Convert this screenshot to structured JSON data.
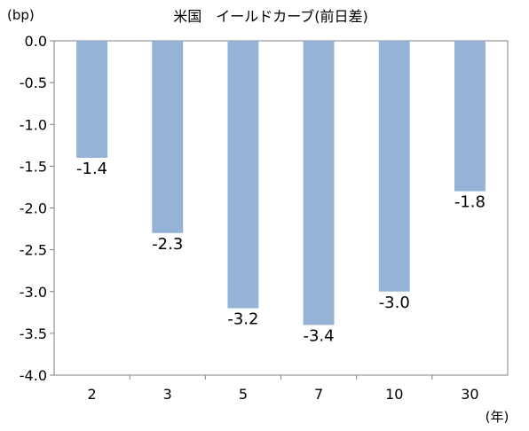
{
  "chart_data": {
    "type": "bar",
    "title": "米国　イールドカーブ(前日差)",
    "y_unit": "(bp)",
    "x_unit": "(年)",
    "categories": [
      "2",
      "3",
      "5",
      "7",
      "10",
      "30"
    ],
    "values": [
      -1.4,
      -2.3,
      -3.2,
      -3.4,
      -3.0,
      -1.8
    ],
    "data_labels": [
      "-1.4",
      "-2.3",
      "-3.2",
      "-3.4",
      "-3.0",
      "-1.8"
    ],
    "ylim": [
      -4.0,
      0.0
    ],
    "yticks": [
      "0.0",
      "-0.5",
      "-1.0",
      "-1.5",
      "-2.0",
      "-2.5",
      "-3.0",
      "-3.5",
      "-4.0"
    ],
    "bar_color": "#95b3d7",
    "grid": false,
    "legend": "none"
  }
}
